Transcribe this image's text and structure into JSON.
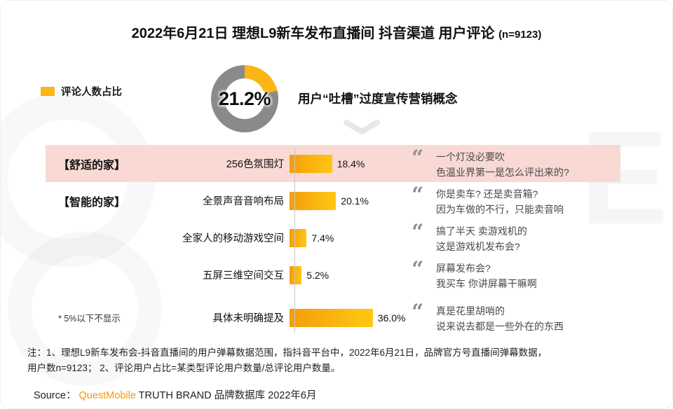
{
  "page": {
    "title": "2022年6月21日 理想L9新车发布直播间 抖音渠道 用户评论",
    "sample_size": "(n=9123)"
  },
  "legend": {
    "label": "评论人数占比"
  },
  "headline": "用户“吐槽”过度宣传营销概念",
  "chart_data": {
    "type": "bar",
    "orientation": "horizontal",
    "title": "2022年6月21日 理想L9新车发布直播间 抖音渠道 用户评论 (n=9123)",
    "legend": [
      "评论人数占比"
    ],
    "donut_percent": 21.2,
    "donut_label": "21.2%",
    "categories": [
      "256色氛围灯",
      "全景声音音响布局",
      "全家人的移动游戏空间",
      "五屏三维空间交互",
      "具体未明确提及"
    ],
    "values": [
      18.4,
      20.1,
      7.4,
      5.2,
      36.0
    ],
    "value_labels": [
      "18.4%",
      "20.1%",
      "7.4%",
      "5.2%",
      "36.0%"
    ],
    "groups": [
      "【舒适的家】",
      "【智能的家】",
      "",
      "",
      ""
    ],
    "side_note": "* 5%以下不显示",
    "quotes": [
      [
        "一个灯没必要吹",
        "色温业界第一是怎么评出来的?"
      ],
      [
        "你是卖车? 还是卖音箱?",
        "因为车做的不行，只能卖音响"
      ],
      [
        "搞了半天 卖游戏机的",
        "这是游戏机发布会?"
      ],
      [
        "屏幕发布会?",
        "我买车 你讲屏幕干嘛啊"
      ],
      [
        "真是花里胡哨的",
        "说来说去都是一些外在的东西"
      ]
    ],
    "xlim": [
      0,
      40
    ],
    "highlight_row": 0,
    "grid": false
  },
  "footnote": {
    "lines": [
      "注：1、理想L9新车发布会-抖音直播间的用户弹幕数据范围，指抖音平台中，2022年6月21日，品牌官方号直播间弹幕数据，",
      "用户数n=9123；  2、评论用户占比=某类型评论用户数量/总评论用户数量。"
    ]
  },
  "source": {
    "prefix": "Source：",
    "brand": "QuestMobile",
    "suffix": " TRUTH BRAND 品牌数据库 2022年6月"
  },
  "icons": {
    "quote": "“"
  },
  "colors": {
    "accent": "#FBB515",
    "ring": "#8A8A8A",
    "highlight": "#F9D9D3",
    "source_brand": "#F59A00",
    "bar_gradient_start": "#F49D0B",
    "bar_gradient_end": "#FFC814"
  }
}
